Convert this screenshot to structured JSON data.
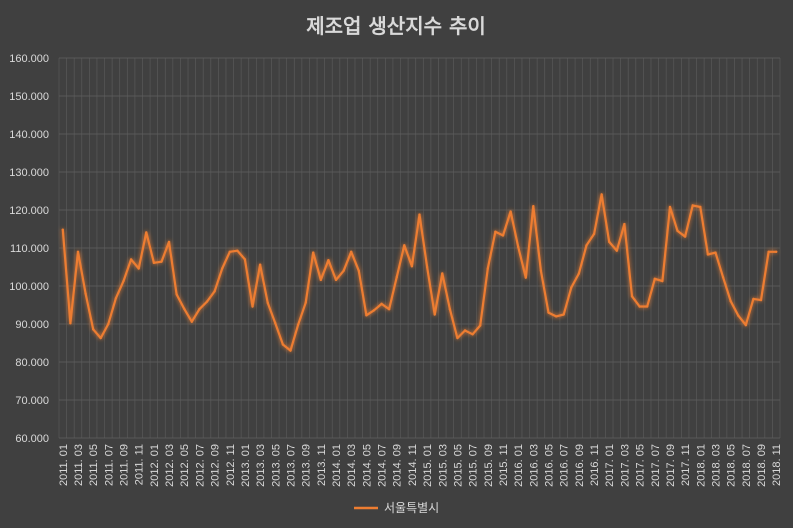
{
  "chart_data": {
    "type": "line",
    "title": "제조업 생산지수 추이",
    "ylim": [
      60,
      160
    ],
    "yticks": [
      "60.000",
      "70.000",
      "80.000",
      "90.000",
      "100.000",
      "110.000",
      "120.000",
      "130.000",
      "140.000",
      "150.000",
      "160.000"
    ],
    "grid": true,
    "legend_position": "bottom",
    "xticks": [
      "2011. 01",
      "2011. 03",
      "2011. 05",
      "2011. 07",
      "2011. 09",
      "2011. 11",
      "2012. 01",
      "2012. 03",
      "2012. 05",
      "2012. 07",
      "2012. 09",
      "2012. 11",
      "2013. 01",
      "2013. 03",
      "2013. 05",
      "2013. 07",
      "2013. 09",
      "2013. 11",
      "2014. 01",
      "2014. 03",
      "2014. 05",
      "2014. 07",
      "2014. 09",
      "2014. 11",
      "2015. 01",
      "2015. 03",
      "2015. 05",
      "2015. 07",
      "2015. 09",
      "2015. 11",
      "2016. 01",
      "2016. 03",
      "2016. 05",
      "2016. 07",
      "2016. 09",
      "2016. 11",
      "2017. 01",
      "2017. 03",
      "2017. 05",
      "2017. 07",
      "2017. 09",
      "2017. 11",
      "2018. 01",
      "2018. 03",
      "2018. 05",
      "2018. 07",
      "2018. 09",
      "2018. 11"
    ],
    "series": [
      {
        "name": "서울특별시",
        "color": "#ed7d31",
        "values": [
          114.8,
          90.2,
          109.0,
          98.0,
          88.6,
          86.3,
          90.0,
          96.8,
          101.3,
          107.0,
          104.6,
          114.1,
          106.1,
          106.4,
          111.6,
          97.8,
          94.0,
          90.6,
          93.9,
          95.9,
          98.6,
          104.6,
          109.0,
          109.3,
          107.0,
          94.6,
          105.6,
          95.6,
          90.2,
          84.6,
          83.0,
          89.8,
          95.6,
          108.8,
          101.6,
          106.8,
          101.6,
          104.0,
          109.0,
          104.0,
          92.3,
          93.6,
          95.3,
          93.9,
          102.3,
          110.7,
          105.2,
          118.8,
          105.0,
          92.5,
          103.3,
          93.9,
          86.3,
          88.3,
          87.3,
          89.6,
          104.6,
          114.3,
          113.3,
          119.6,
          110.3,
          102.2,
          121.0,
          104.0,
          93.0,
          92.0,
          92.5,
          99.6,
          103.3,
          110.7,
          113.7,
          124.1,
          111.6,
          109.3,
          116.3,
          97.3,
          94.6,
          94.6,
          101.9,
          101.3,
          120.8,
          114.5,
          113.0,
          121.2,
          120.8,
          108.3,
          108.8,
          102.3,
          96.0,
          92.2,
          89.7,
          96.6,
          96.3,
          109.0,
          109.0
        ]
      }
    ]
  }
}
